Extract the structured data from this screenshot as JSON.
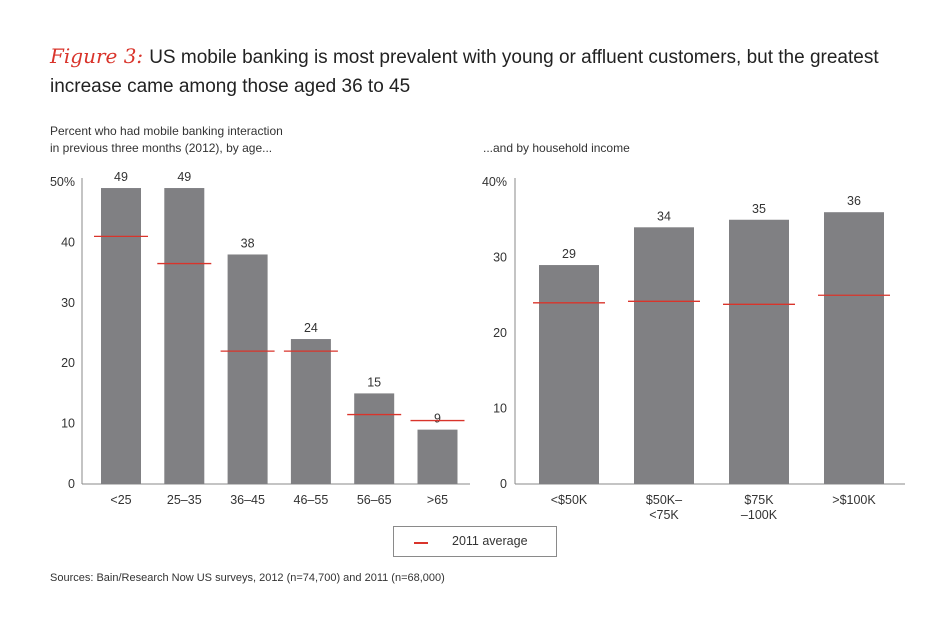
{
  "title": {
    "figure_label": "Figure 3:",
    "text": "US mobile banking is most prevalent with young or affluent customers, but the greatest increase came among those aged 36 to 45"
  },
  "colors": {
    "bar": "#808083",
    "marker": "#d9342b",
    "axis": "#888888"
  },
  "legend": {
    "label": "2011 average"
  },
  "source": "Sources: Bain/Research Now US surveys, 2012 (n=74,700) and 2011 (n=68,000)",
  "chart_data": [
    {
      "type": "bar",
      "subtitle_lines": [
        "Percent who had mobile banking interaction",
        "in previous three months (2012), by age..."
      ],
      "categories": [
        [
          "<25"
        ],
        [
          "25–35"
        ],
        [
          "36–45"
        ],
        [
          "46–55"
        ],
        [
          "56–65"
        ],
        [
          ">65"
        ]
      ],
      "yticks": [
        "0",
        "10",
        "20",
        "30",
        "40",
        "50%"
      ],
      "ylim": [
        0,
        50
      ],
      "series": [
        {
          "name": "2012",
          "values": [
            49,
            49,
            38,
            24,
            15,
            9
          ]
        },
        {
          "name": "2011 average",
          "values": [
            41,
            36.5,
            22,
            22,
            11.5,
            10.5
          ]
        }
      ]
    },
    {
      "type": "bar",
      "subtitle_lines": [
        "...and by household income"
      ],
      "categories": [
        [
          "<$50K"
        ],
        [
          "$50K–",
          "<75K"
        ],
        [
          "$75K",
          "–100K"
        ],
        [
          ">$100K"
        ]
      ],
      "yticks": [
        "0",
        "10",
        "20",
        "30",
        "40%"
      ],
      "ylim": [
        0,
        40
      ],
      "series": [
        {
          "name": "2012",
          "values": [
            29,
            34,
            35,
            36
          ]
        },
        {
          "name": "2011 average",
          "values": [
            24,
            24.2,
            23.8,
            25
          ]
        }
      ]
    }
  ]
}
